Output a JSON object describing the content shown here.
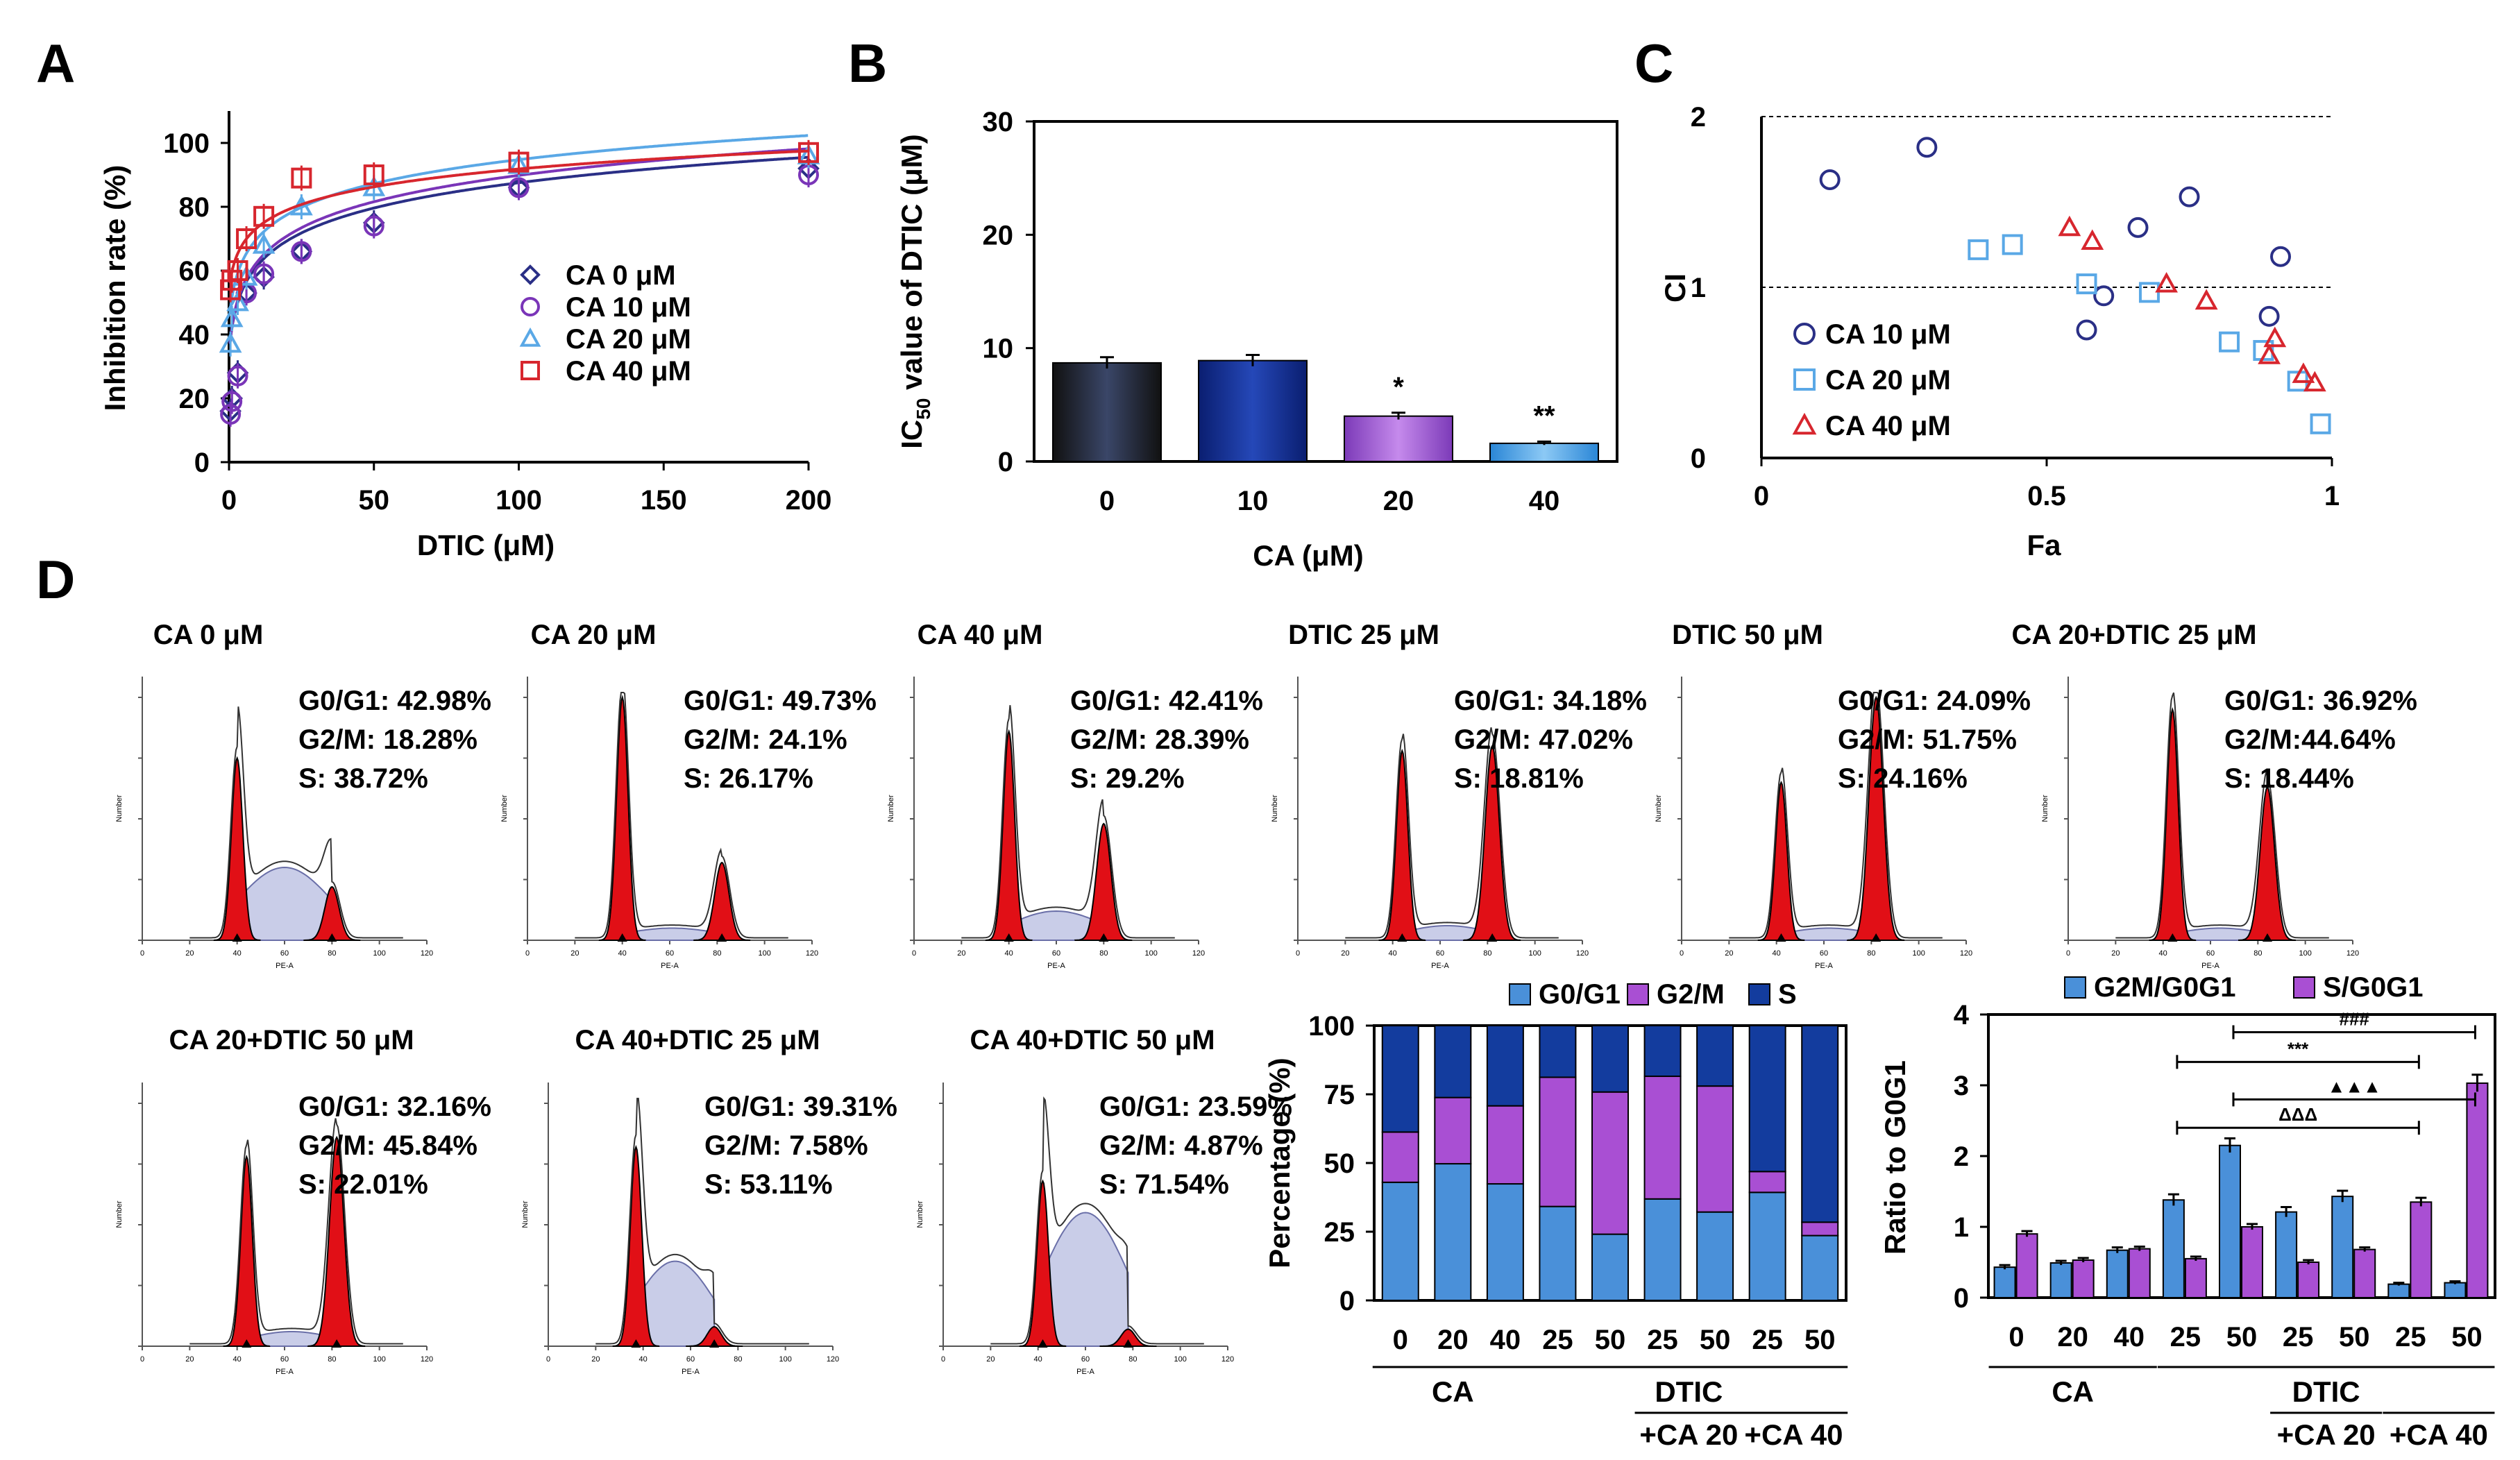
{
  "panels": {
    "A": "A",
    "B": "B",
    "C": "C",
    "D": "D"
  },
  "colors": {
    "ca0": "#2a2f86",
    "ca10": "#7a35b8",
    "ca20": "#5aa8e6",
    "ca40": "#d7262e",
    "g0g1": "#4a90d9",
    "g2m": "#a94fd3",
    "s": "#133c9e",
    "hist_red": "#e10f16"
  },
  "chart_data": [
    {
      "id": "A",
      "type": "scatter",
      "xlabel": "DTIC (μM)",
      "ylabel": "Inhibition rate (%)",
      "xlim": [
        0,
        200
      ],
      "ylim": [
        0,
        110
      ],
      "xticks": [
        0,
        50,
        100,
        150,
        200
      ],
      "yticks": [
        0,
        20,
        40,
        60,
        80,
        100
      ],
      "series": [
        {
          "name": "CA 0 μM",
          "key": "ca0",
          "marker": "diamond",
          "x": [
            0.5,
            1,
            3,
            6,
            12,
            25,
            50,
            100,
            200
          ],
          "y": [
            16,
            20,
            28,
            53,
            58,
            66,
            75,
            86,
            92
          ],
          "fit": {
            "a": 34,
            "b": 11.6
          }
        },
        {
          "name": "CA 10 μM",
          "key": "ca10",
          "marker": "circle",
          "x": [
            0.5,
            1,
            3,
            6,
            12,
            25,
            50,
            100,
            200
          ],
          "y": [
            15,
            19,
            27,
            53,
            59,
            66,
            74,
            86,
            90
          ],
          "fit": {
            "a": 34,
            "b": 12.1
          }
        },
        {
          "name": "CA 20 μM",
          "key": "ca20",
          "marker": "triangle",
          "x": [
            0.5,
            1,
            3,
            6,
            12,
            25,
            50,
            100,
            200
          ],
          "y": [
            37,
            45,
            50,
            58,
            68,
            80,
            86,
            93,
            96
          ],
          "fit": {
            "a": 44,
            "b": 11.0
          }
        },
        {
          "name": "CA 40 μM",
          "key": "ca40",
          "marker": "square",
          "x": [
            0.5,
            1,
            3,
            6,
            12,
            25,
            50,
            100,
            200
          ],
          "y": [
            54,
            57,
            60,
            70,
            77,
            89,
            90,
            94,
            97
          ],
          "fit": {
            "a": 54,
            "b": 8.2
          }
        }
      ]
    },
    {
      "id": "B",
      "type": "bar",
      "xlabel": "CA (μM)",
      "ylabel_main": "IC",
      "ylabel_sub": "50",
      "ylabel_rest": " value of DTIC (μM)",
      "categories": [
        "0",
        "10",
        "20",
        "40"
      ],
      "values": [
        8.7,
        8.9,
        4.0,
        1.6
      ],
      "errors": [
        0.5,
        0.5,
        0.3,
        0.15
      ],
      "annotations": [
        "",
        "",
        "*",
        "**"
      ],
      "ylim": [
        0,
        30
      ],
      "yticks": [
        0,
        10,
        20,
        30
      ]
    },
    {
      "id": "C",
      "type": "scatter",
      "xlabel": "Fa",
      "ylabel": "CI",
      "xlim": [
        0,
        1
      ],
      "ylim": [
        0,
        2
      ],
      "xticks": [
        0,
        0.5,
        1
      ],
      "yticks": [
        0,
        1,
        2
      ],
      "ref_lines": [
        1,
        2
      ],
      "series": [
        {
          "name": "CA 10 μM",
          "key": "ca0",
          "marker": "circle",
          "x": [
            0.12,
            0.29,
            0.57,
            0.6,
            0.66,
            0.75,
            0.89,
            0.91
          ],
          "y": [
            1.63,
            1.82,
            0.75,
            0.95,
            1.35,
            1.53,
            0.83,
            1.18
          ]
        },
        {
          "name": "CA 20 μM",
          "key": "ca20",
          "marker": "square",
          "x": [
            0.38,
            0.44,
            0.57,
            0.68,
            0.82,
            0.88,
            0.94,
            0.98
          ],
          "y": [
            1.22,
            1.25,
            1.02,
            0.97,
            0.68,
            0.63,
            0.45,
            0.2
          ]
        },
        {
          "name": "CA 40 μM",
          "key": "ca40",
          "marker": "triangle",
          "x": [
            0.54,
            0.58,
            0.71,
            0.78,
            0.89,
            0.9,
            0.95,
            0.97
          ],
          "y": [
            1.35,
            1.27,
            1.02,
            0.92,
            0.6,
            0.7,
            0.49,
            0.44
          ]
        }
      ]
    },
    {
      "id": "D-stacked",
      "type": "bar",
      "ylabel": "Percentage (%)",
      "ylim": [
        0,
        100
      ],
      "yticks": [
        0,
        25,
        50,
        75,
        100
      ],
      "categories": [
        "0",
        "20",
        "40",
        "25",
        "50",
        "25",
        "50",
        "25",
        "50"
      ],
      "series": [
        {
          "name": "G0/G1",
          "key": "g0g1",
          "values": [
            42.98,
            49.73,
            42.41,
            34.18,
            24.09,
            36.92,
            32.16,
            39.31,
            23.59
          ]
        },
        {
          "name": "G2/M",
          "key": "g2m",
          "values": [
            18.28,
            24.1,
            28.39,
            47.02,
            51.75,
            44.64,
            45.84,
            7.58,
            4.87
          ]
        },
        {
          "name": "S",
          "key": "s",
          "values": [
            38.72,
            26.17,
            29.2,
            18.81,
            24.16,
            18.44,
            22.01,
            53.11,
            71.54
          ]
        }
      ],
      "group_labels": {
        "ca": "CA",
        "dtic": "DTIC",
        "ca20": "+CA 20",
        "ca40": "+CA 40"
      }
    },
    {
      "id": "D-ratio",
      "type": "bar",
      "ylabel": "Ratio to G0G1",
      "ylim": [
        0,
        4
      ],
      "yticks": [
        0,
        1,
        2,
        3,
        4
      ],
      "categories": [
        "0",
        "20",
        "40",
        "25",
        "50",
        "25",
        "50",
        "25",
        "50"
      ],
      "series": [
        {
          "name": "G2M/G0G1",
          "key": "g0g1",
          "values": [
            0.43,
            0.49,
            0.67,
            1.38,
            2.15,
            1.21,
            1.43,
            0.19,
            0.21
          ],
          "errors": [
            0.03,
            0.03,
            0.04,
            0.08,
            0.1,
            0.07,
            0.08,
            0.02,
            0.02
          ]
        },
        {
          "name": "S/G0G1",
          "key": "g2m",
          "values": [
            0.9,
            0.53,
            0.69,
            0.55,
            1.0,
            0.5,
            0.68,
            1.35,
            3.03
          ],
          "errors": [
            0.04,
            0.03,
            0.03,
            0.03,
            0.04,
            0.03,
            0.03,
            0.06,
            0.12
          ]
        }
      ],
      "brackets": [
        {
          "symbol": "###",
          "from": 4,
          "to": 8,
          "y": 3.75
        },
        {
          "symbol": "***",
          "from": 3,
          "to": 7,
          "y": 3.33
        },
        {
          "symbol": "▲▲▲",
          "from": 4,
          "to": 8,
          "y": 2.8
        },
        {
          "symbol": "ΔΔΔ",
          "from": 3,
          "to": 7,
          "y": 2.4
        }
      ],
      "group_labels": {
        "ca": "CA",
        "dtic": "DTIC",
        "ca20": "+CA 20",
        "ca40": "+CA 40"
      }
    }
  ],
  "histograms": [
    {
      "title": "CA 0 μM",
      "g0g1": "G0/G1: 42.98%",
      "g2m": "G2/M: 18.28%",
      "s": "S: 38.72%",
      "peaks": [
        0.75,
        0.22
      ],
      "spos": [
        40,
        80
      ],
      "sfill": 0.3
    },
    {
      "title": "CA 20 μM",
      "g0g1": "G0/G1: 49.73%",
      "g2m": "G2/M: 24.1%",
      "s": "S: 26.17%",
      "peaks": [
        1.0,
        0.32
      ],
      "spos": [
        40,
        82
      ],
      "sfill": 0.05
    },
    {
      "title": "CA 40 μM",
      "g0g1": "G0/G1: 42.41%",
      "g2m": "G2/M: 28.39%",
      "s": "S: 29.2%",
      "peaks": [
        0.86,
        0.48
      ],
      "spos": [
        40,
        80
      ],
      "sfill": 0.12
    },
    {
      "title": "DTIC 25 μM",
      "g0g1": "G0/G1: 34.18%",
      "g2m": "G2/M: 47.02%",
      "s": "S: 18.81%",
      "peaks": [
        0.78,
        0.8
      ],
      "spos": [
        44,
        82
      ],
      "sfill": 0.06
    },
    {
      "title": "DTIC 50 μM",
      "g0g1": "G0/G1: 24.09%",
      "g2m": "G2/M: 51.75%",
      "s": "S: 24.16%",
      "peaks": [
        0.65,
        1.0
      ],
      "spos": [
        42,
        82
      ],
      "sfill": 0.05
    },
    {
      "title": "CA 20+DTIC 25 μM",
      "g0g1": "G0/G1: 36.92%",
      "g2m": "G2/M:44.64%",
      "s": "S: 18.44%",
      "peaks": [
        0.95,
        0.63
      ],
      "spos": [
        44,
        84
      ],
      "sfill": 0.05
    },
    {
      "title": "CA 20+DTIC 50 μM",
      "g0g1": "G0/G1: 32.16%",
      "g2m": "G2/M: 45.84%",
      "s": "S: 22.01%",
      "peaks": [
        0.78,
        0.86
      ],
      "spos": [
        44,
        82
      ],
      "sfill": 0.06
    },
    {
      "title": "CA 40+DTIC 25 μM",
      "g0g1": "G0/G1: 39.31%",
      "g2m": "G2/M: 7.58%",
      "s": "S: 53.11%",
      "peaks": [
        0.82,
        0.08
      ],
      "spos": [
        37,
        70
      ],
      "sfill": 0.35
    },
    {
      "title": "CA 40+DTIC 50 μM",
      "g0g1": "G0/G1: 23.59%",
      "g2m": "G2/M: 4.87%",
      "s": "S: 71.54%",
      "peaks": [
        0.68,
        0.07
      ],
      "spos": [
        42,
        78
      ],
      "sfill": 0.55
    }
  ],
  "hist_axis": {
    "xlabel": "PE-A",
    "ylabel": "Number",
    "xticks": [
      "0",
      "20",
      "40",
      "60",
      "80",
      "100",
      "120"
    ]
  }
}
